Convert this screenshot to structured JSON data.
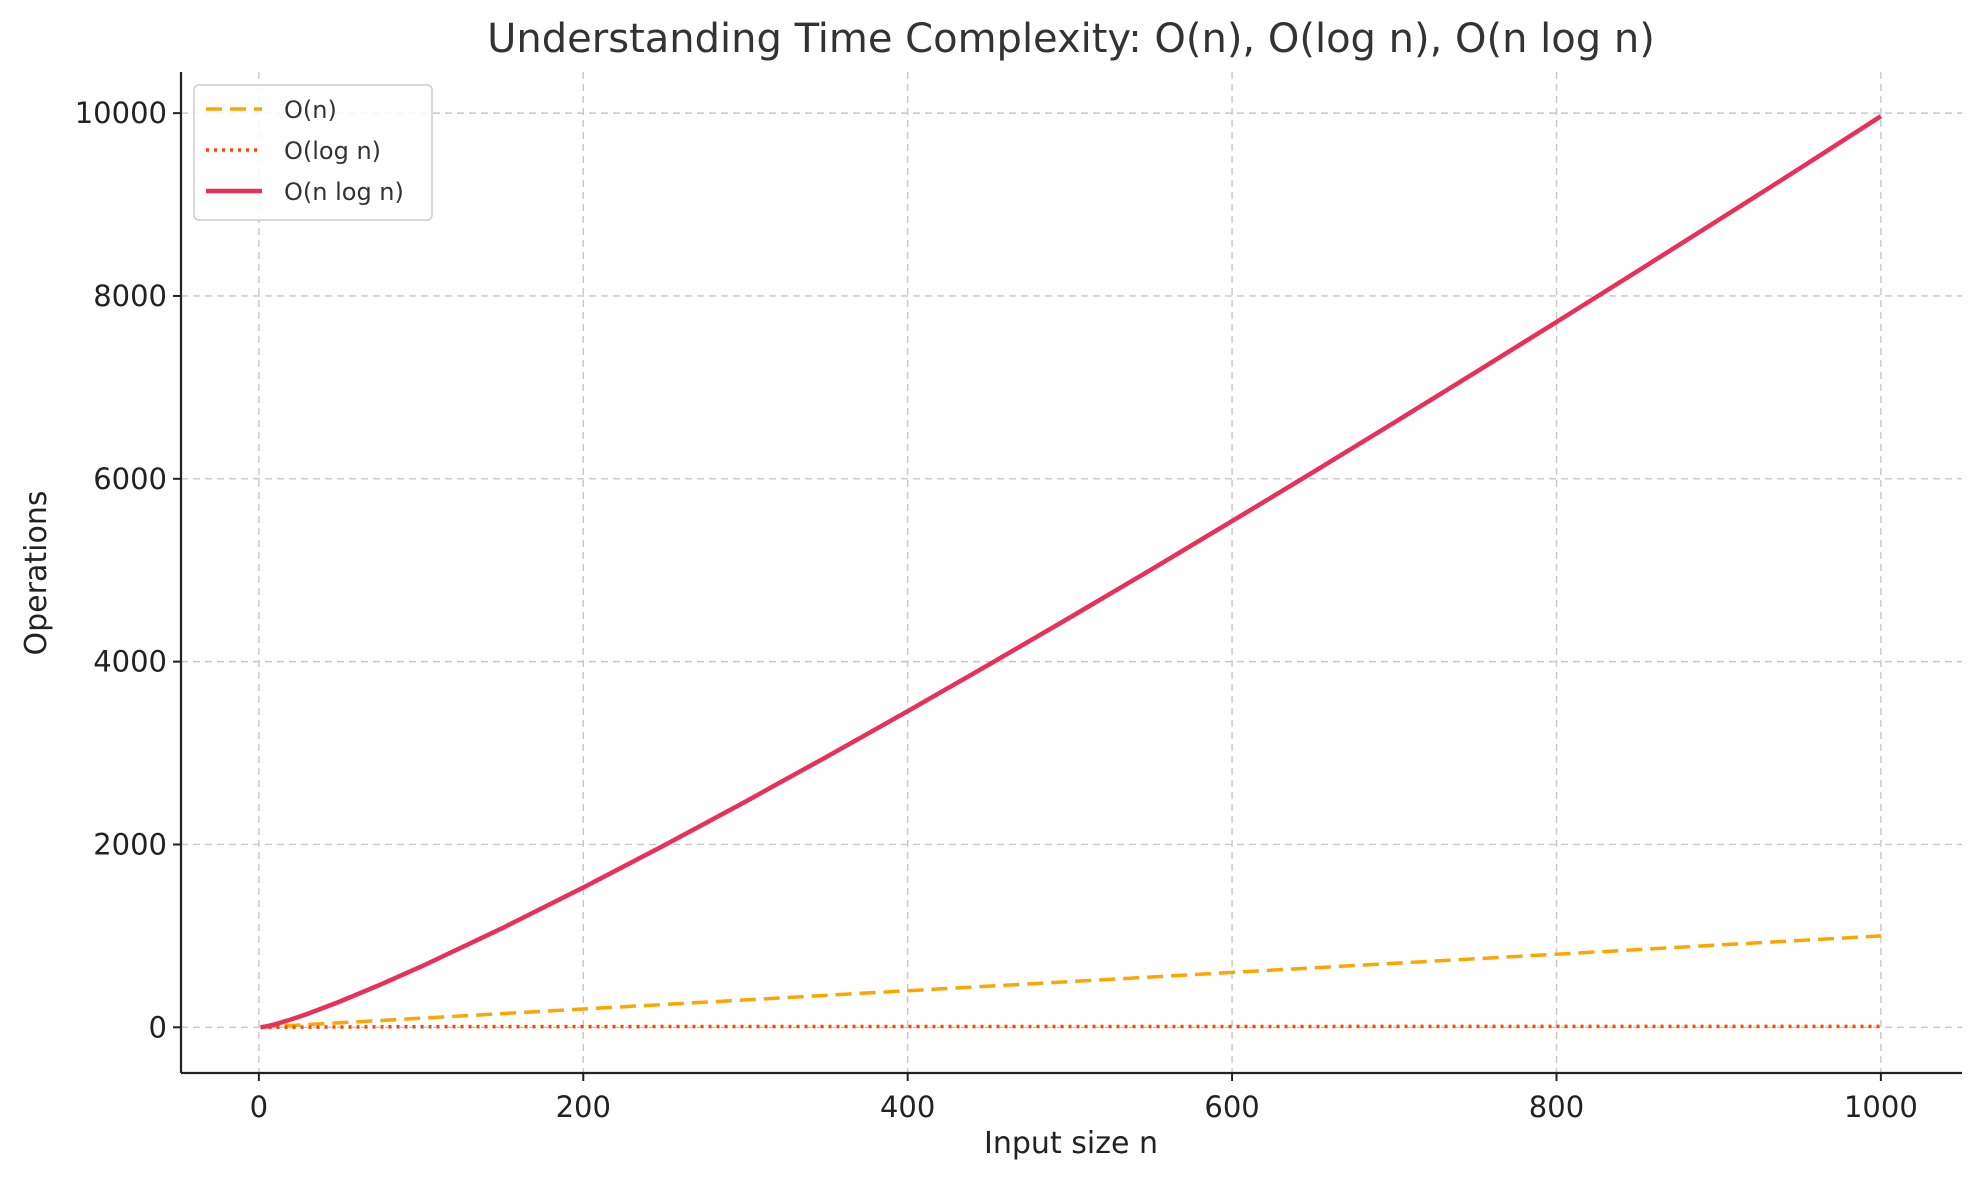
{
  "chart_data": {
    "type": "line",
    "title": "Understanding Time Complexity: O(n), O(log n), O(n log n)",
    "xlabel": "Input size n",
    "ylabel": "Operations",
    "xlim": [
      -48,
      1050
    ],
    "ylim": [
      -500,
      10450
    ],
    "x_ticks": [
      0,
      200,
      400,
      600,
      800,
      1000
    ],
    "y_ticks": [
      0,
      2000,
      4000,
      6000,
      8000,
      10000
    ],
    "grid": true,
    "legend_position": "top-left",
    "series": [
      {
        "name": "O(n)",
        "color": "#FFA500",
        "style": "dashed",
        "x": [
          1,
          100,
          200,
          300,
          400,
          500,
          600,
          700,
          800,
          900,
          1000
        ],
        "y": [
          1,
          100,
          200,
          300,
          400,
          500,
          600,
          700,
          800,
          900,
          1000
        ]
      },
      {
        "name": "O(log n)",
        "color": "#FF4500",
        "style": "dotted",
        "x": [
          1,
          100,
          200,
          300,
          400,
          500,
          600,
          700,
          800,
          900,
          1000
        ],
        "y": [
          0,
          6.6,
          7.6,
          8.2,
          8.6,
          9.0,
          9.2,
          9.5,
          9.6,
          9.8,
          10.0
        ]
      },
      {
        "name": "O(n log n)",
        "color": "#E8305A",
        "style": "solid",
        "x": [
          1,
          5,
          10,
          20,
          30,
          50,
          75,
          100,
          150,
          200,
          250,
          300,
          350,
          400,
          450,
          500,
          550,
          600,
          650,
          700,
          750,
          800,
          850,
          900,
          950,
          1000
        ],
        "y": [
          0,
          12,
          33,
          86,
          147,
          282,
          467,
          664,
          1084,
          1529,
          1991,
          2469,
          2959,
          3458,
          3966,
          4483,
          5006,
          5537,
          6073,
          6616,
          7164,
          7715,
          8272,
          8832,
          9396,
          9966
        ]
      }
    ]
  }
}
